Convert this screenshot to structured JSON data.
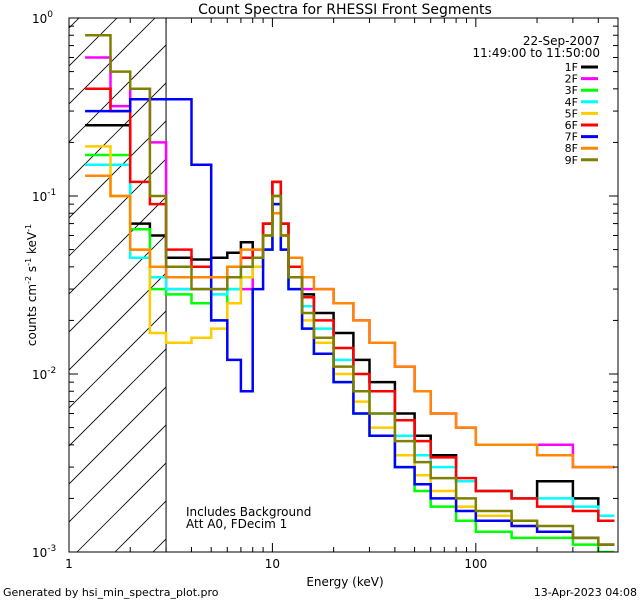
{
  "chart_data": {
    "type": "line",
    "title": "Count Spectra for RHESSI Front Segments",
    "xlabel": "Energy (keV)",
    "ylabel": "counts cm-2 s-1 keV-1",
    "xscale": "log",
    "yscale": "log",
    "xlim": [
      1,
      500
    ],
    "ylim": [
      0.001,
      1
    ],
    "x_tick_labels": [
      "1",
      "10",
      "100"
    ],
    "y_tick_labels": [
      "10-3",
      "10-2",
      "10-1",
      "100"
    ],
    "date": "22-Sep-2007",
    "time_range": "11:49:00 to 11:50:00",
    "annotations": [
      "Includes Background",
      "Att A0, FDecim 1"
    ],
    "footer_left": "Generated by hsi_min_spectra_plot.pro",
    "footer_right": "13-Apr-2023 04:08",
    "attenuator_cutoff_keV": 3,
    "series": [
      {
        "name": "1F",
        "color": "#000000",
        "x": [
          1.2,
          1.6,
          2.0,
          2.5,
          3.0,
          4,
          5,
          6,
          7,
          8,
          9,
          10,
          11,
          12,
          14,
          16,
          20,
          25,
          30,
          40,
          50,
          60,
          80,
          100,
          150,
          200,
          300,
          400
        ],
        "y": [
          0.25,
          0.25,
          0.07,
          0.06,
          0.045,
          0.044,
          0.045,
          0.048,
          0.055,
          0.045,
          0.07,
          0.12,
          0.07,
          0.04,
          0.028,
          0.022,
          0.017,
          0.012,
          0.009,
          0.006,
          0.0045,
          0.0035,
          0.0025,
          0.0022,
          0.002,
          0.0025,
          0.002,
          0.0015
        ]
      },
      {
        "name": "2F",
        "color": "#ff00ff",
        "x": [
          1.2,
          1.6,
          2.0,
          2.5,
          3.0,
          4,
          5,
          6,
          7,
          8,
          9,
          10,
          11,
          12,
          14,
          16,
          20,
          25,
          30,
          40,
          50,
          60,
          80,
          100,
          150,
          200,
          300,
          400
        ],
        "y": [
          0.6,
          0.32,
          0.4,
          0.2,
          0.03,
          0.03,
          0.03,
          0.035,
          0.03,
          0.04,
          0.05,
          0.1,
          0.06,
          0.035,
          0.03,
          0.03,
          0.025,
          0.02,
          0.015,
          0.011,
          0.008,
          0.006,
          0.005,
          0.004,
          0.004,
          0.004,
          0.003,
          0.003
        ]
      },
      {
        "name": "3F",
        "color": "#00ff00",
        "x": [
          1.2,
          1.6,
          2.0,
          2.5,
          3.0,
          4,
          5,
          6,
          7,
          8,
          9,
          10,
          11,
          12,
          14,
          16,
          20,
          25,
          30,
          40,
          50,
          60,
          80,
          100,
          150,
          200,
          300,
          400
        ],
        "y": [
          0.17,
          0.17,
          0.065,
          0.03,
          0.028,
          0.025,
          0.02,
          0.03,
          0.035,
          0.04,
          0.05,
          0.08,
          0.05,
          0.03,
          0.018,
          0.013,
          0.009,
          0.006,
          0.0045,
          0.003,
          0.0022,
          0.0018,
          0.0015,
          0.0013,
          0.0012,
          0.0012,
          0.0011,
          0.001
        ]
      },
      {
        "name": "4F",
        "color": "#00ffff",
        "x": [
          1.2,
          1.6,
          2.0,
          2.5,
          3.0,
          4,
          5,
          6,
          7,
          8,
          9,
          10,
          11,
          12,
          14,
          16,
          20,
          25,
          30,
          40,
          50,
          60,
          80,
          100,
          150,
          200,
          300,
          400
        ],
        "y": [
          0.15,
          0.15,
          0.045,
          0.035,
          0.03,
          0.03,
          0.028,
          0.03,
          0.04,
          0.04,
          0.05,
          0.09,
          0.06,
          0.035,
          0.024,
          0.018,
          0.012,
          0.008,
          0.006,
          0.0045,
          0.0035,
          0.003,
          0.0025,
          0.0022,
          0.002,
          0.002,
          0.0018,
          0.0016
        ]
      },
      {
        "name": "5F",
        "color": "#ffcc00",
        "x": [
          1.2,
          1.6,
          2.0,
          2.5,
          3.0,
          4,
          5,
          6,
          7,
          8,
          9,
          10,
          11,
          12,
          14,
          16,
          20,
          25,
          30,
          40,
          50,
          60,
          80,
          100,
          150,
          200,
          300,
          400
        ],
        "y": [
          0.19,
          0.1,
          0.05,
          0.017,
          0.015,
          0.016,
          0.018,
          0.025,
          0.035,
          0.04,
          0.05,
          0.1,
          0.06,
          0.035,
          0.02,
          0.015,
          0.01,
          0.007,
          0.005,
          0.0035,
          0.0027,
          0.0022,
          0.0018,
          0.0016,
          0.0014,
          0.0013,
          0.0012,
          0.0011
        ]
      },
      {
        "name": "6F",
        "color": "#ff0000",
        "x": [
          1.2,
          1.6,
          2.0,
          2.5,
          3.0,
          4,
          5,
          6,
          7,
          8,
          9,
          10,
          11,
          12,
          14,
          16,
          20,
          25,
          30,
          40,
          50,
          60,
          80,
          100,
          150,
          200,
          300,
          400
        ],
        "y": [
          0.4,
          0.3,
          0.12,
          0.09,
          0.05,
          0.04,
          0.035,
          0.04,
          0.045,
          0.05,
          0.07,
          0.12,
          0.07,
          0.04,
          0.027,
          0.02,
          0.014,
          0.01,
          0.008,
          0.0055,
          0.0042,
          0.0034,
          0.0026,
          0.0022,
          0.002,
          0.0018,
          0.0017,
          0.0015
        ]
      },
      {
        "name": "7F",
        "color": "#0000ff",
        "x": [
          1.2,
          1.6,
          2.0,
          2.5,
          3.0,
          4,
          5,
          6,
          7,
          8,
          9,
          10,
          11,
          12,
          14,
          16,
          20,
          25,
          30,
          40,
          50,
          60,
          80,
          100,
          150,
          200,
          300,
          400
        ],
        "y": [
          0.3,
          0.3,
          0.35,
          0.35,
          0.35,
          0.15,
          0.02,
          0.012,
          0.008,
          0.03,
          0.05,
          0.09,
          0.05,
          0.03,
          0.018,
          0.013,
          0.009,
          0.006,
          0.0045,
          0.003,
          0.0024,
          0.002,
          0.0017,
          0.0015,
          0.0014,
          0.0013,
          0.0012,
          0.0011
        ]
      },
      {
        "name": "8F",
        "color": "#ff8800",
        "x": [
          1.2,
          1.6,
          2.0,
          2.5,
          3.0,
          4,
          5,
          6,
          7,
          8,
          9,
          10,
          11,
          12,
          14,
          16,
          20,
          25,
          30,
          40,
          50,
          60,
          80,
          100,
          150,
          200,
          300,
          400
        ],
        "y": [
          0.13,
          0.1,
          0.05,
          0.04,
          0.035,
          0.035,
          0.035,
          0.04,
          0.05,
          0.05,
          0.06,
          0.08,
          0.06,
          0.045,
          0.035,
          0.03,
          0.025,
          0.02,
          0.015,
          0.011,
          0.008,
          0.006,
          0.005,
          0.004,
          0.004,
          0.0035,
          0.003,
          0.003
        ]
      },
      {
        "name": "9F",
        "color": "#808000",
        "x": [
          1.2,
          1.6,
          2.0,
          2.5,
          3.0,
          4,
          5,
          6,
          7,
          8,
          9,
          10,
          11,
          12,
          14,
          16,
          20,
          25,
          30,
          40,
          50,
          60,
          80,
          100,
          150,
          200,
          300,
          400
        ],
        "y": [
          0.8,
          0.5,
          0.4,
          0.1,
          0.04,
          0.03,
          0.03,
          0.035,
          0.04,
          0.045,
          0.06,
          0.1,
          0.06,
          0.035,
          0.022,
          0.016,
          0.011,
          0.008,
          0.006,
          0.0042,
          0.0032,
          0.0026,
          0.002,
          0.0017,
          0.0015,
          0.0014,
          0.0012,
          0.0011
        ]
      }
    ]
  }
}
